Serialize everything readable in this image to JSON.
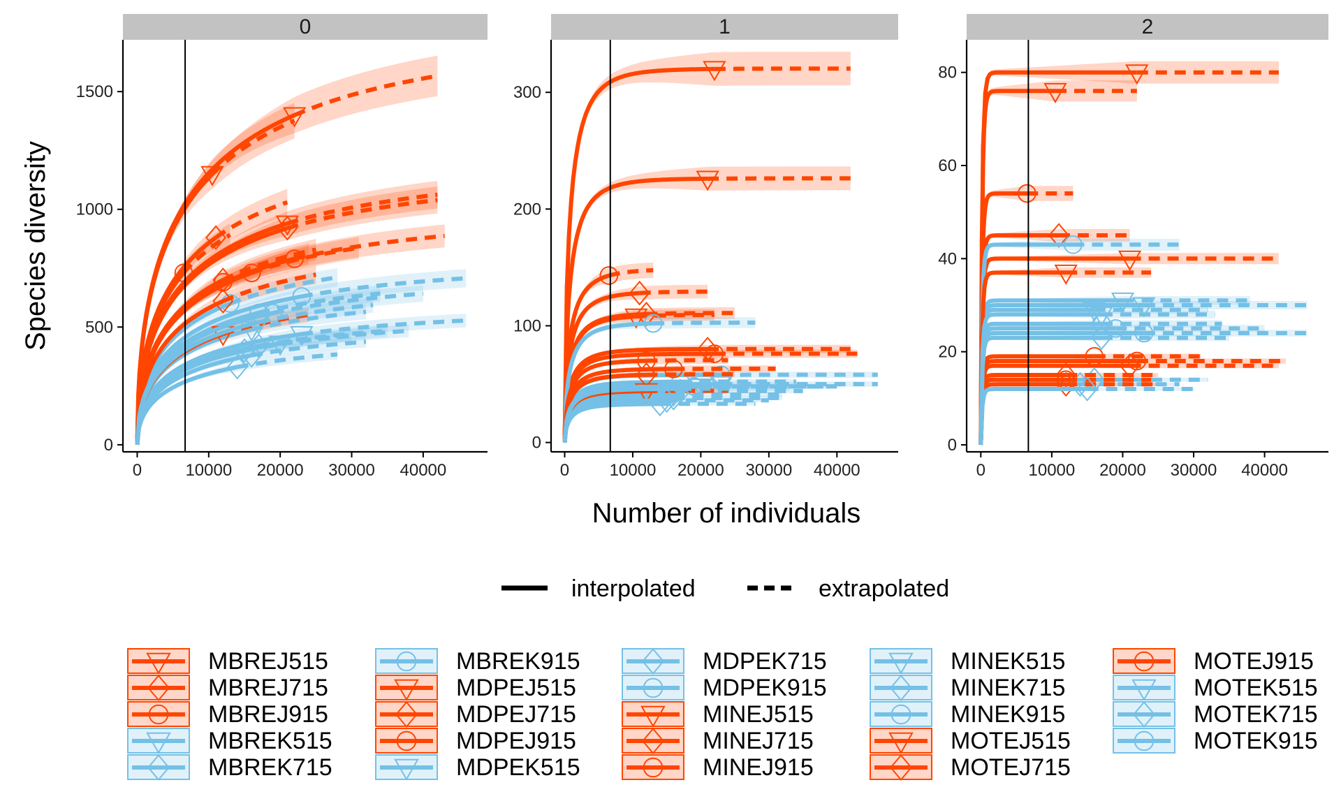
{
  "chart_data": {
    "type": "line",
    "facet_variable": "order q",
    "xlabel": "Number of individuals",
    "ylabel": "Species diversity",
    "reference_line_x": 6700,
    "xlim": [
      -2000,
      49000
    ],
    "x_ticks": [
      0,
      10000,
      20000,
      30000,
      40000
    ],
    "linetype_legend": [
      "interpolated",
      "extrapolated"
    ],
    "colors": {
      "J": "#ff4500",
      "K": "#74c0e6"
    },
    "panels": [
      {
        "strip": "0",
        "ylim": [
          -30,
          1720
        ],
        "y_ticks": [
          0,
          500,
          1000,
          1500
        ]
      },
      {
        "strip": "1",
        "ylim": [
          -8,
          345
        ],
        "y_ticks": [
          0,
          100,
          200,
          300
        ]
      },
      {
        "strip": "2",
        "ylim": [
          -1.5,
          87
        ],
        "y_ticks": [
          0,
          20,
          40,
          60,
          80
        ]
      }
    ],
    "series": [
      {
        "name": "MBREJ515",
        "group": "J",
        "marker": "triangle-down",
        "n": 22000,
        "xmax": 42000,
        "q0": 1400,
        "q1": 320,
        "q2": 80
      },
      {
        "name": "MBREJ715",
        "group": "J",
        "marker": "diamond",
        "n": 11000,
        "xmax": 21000,
        "q0": 880,
        "q1": 128,
        "q2": 45
      },
      {
        "name": "MBREJ915",
        "group": "J",
        "marker": "circle",
        "n": 6500,
        "xmax": 13000,
        "q0": 730,
        "q1": 143,
        "q2": 54
      },
      {
        "name": "MBREK515",
        "group": "K",
        "marker": "triangle-down",
        "n": 20000,
        "xmax": 38000,
        "q0": 430,
        "q1": 48,
        "q2": 31
      },
      {
        "name": "MBREK715",
        "group": "K",
        "marker": "diamond",
        "n": 14000,
        "xmax": 28000,
        "q0": 330,
        "q1": 33,
        "q2": 13
      },
      {
        "name": "MBREK915",
        "group": "K",
        "marker": "circle",
        "n": 23000,
        "xmax": 46000,
        "q0": 630,
        "q1": 58,
        "q2": 24
      },
      {
        "name": "MDPEJ515",
        "group": "J",
        "marker": "triangle-down",
        "n": 21000,
        "xmax": 42000,
        "q0": 940,
        "q1": 226,
        "q2": 40
      },
      {
        "name": "MDPEJ715",
        "group": "J",
        "marker": "diamond",
        "n": 21000,
        "xmax": 42000,
        "q0": 920,
        "q1": 80,
        "q2": 17
      },
      {
        "name": "MDPEJ915",
        "group": "J",
        "marker": "circle",
        "n": 22000,
        "xmax": 43000,
        "q0": 790,
        "q1": 76,
        "q2": 18
      },
      {
        "name": "MDPEK515",
        "group": "K",
        "marker": "triangle-down",
        "n": 23000,
        "xmax": 46000,
        "q0": 470,
        "q1": 50,
        "q2": 30
      },
      {
        "name": "MDPEK715",
        "group": "K",
        "marker": "diamond",
        "n": 16000,
        "xmax": 32000,
        "q0": 380,
        "q1": 38,
        "q2": 14
      },
      {
        "name": "MDPEK915",
        "group": "K",
        "marker": "circle",
        "n": 17000,
        "xmax": 34000,
        "q0": 560,
        "q1": 52,
        "q2": 26
      },
      {
        "name": "MINEJ515",
        "group": "J",
        "marker": "triangle-down",
        "n": 10500,
        "xmax": 22000,
        "q0": 1150,
        "q1": 108,
        "q2": 76
      },
      {
        "name": "MINEJ715",
        "group": "J",
        "marker": "diamond",
        "n": 12000,
        "xmax": 25000,
        "q0": 700,
        "q1": 110,
        "q2": 15
      },
      {
        "name": "MINEJ915",
        "group": "J",
        "marker": "circle",
        "n": 16000,
        "xmax": 31000,
        "q0": 730,
        "q1": 63,
        "q2": 19
      },
      {
        "name": "MINEK515",
        "group": "K",
        "marker": "triangle-down",
        "n": 16000,
        "xmax": 32000,
        "q0": 490,
        "q1": 41,
        "q2": 29
      },
      {
        "name": "MINEK715",
        "group": "K",
        "marker": "diamond",
        "n": 17000,
        "xmax": 35000,
        "q0": 420,
        "q1": 44,
        "q2": 23
      },
      {
        "name": "MINEK915",
        "group": "K",
        "marker": "circle",
        "n": 13000,
        "xmax": 28000,
        "q0": 600,
        "q1": 102,
        "q2": 43
      },
      {
        "name": "MOTEJ515",
        "group": "J",
        "marker": "triangle-down",
        "n": 12000,
        "xmax": 24000,
        "q0": 470,
        "q1": 44,
        "q2": 37
      },
      {
        "name": "MOTEJ715",
        "group": "J",
        "marker": "diamond",
        "n": 12000,
        "xmax": 25000,
        "q0": 610,
        "q1": 58,
        "q2": 13
      },
      {
        "name": "MOTEJ915",
        "group": "J",
        "marker": "circle",
        "n": 12000,
        "xmax": 24000,
        "q0": 690,
        "q1": 70,
        "q2": 14
      },
      {
        "name": "MOTEK515",
        "group": "K",
        "marker": "triangle-down",
        "n": 17000,
        "xmax": 33000,
        "q0": 520,
        "q1": 46,
        "q2": 28
      },
      {
        "name": "MOTEK715",
        "group": "K",
        "marker": "diamond",
        "n": 15000,
        "xmax": 30000,
        "q0": 400,
        "q1": 36,
        "q2": 12
      },
      {
        "name": "MOTEK915",
        "group": "K",
        "marker": "circle",
        "n": 19000,
        "xmax": 40000,
        "q0": 560,
        "q1": 48,
        "q2": 25
      }
    ]
  }
}
